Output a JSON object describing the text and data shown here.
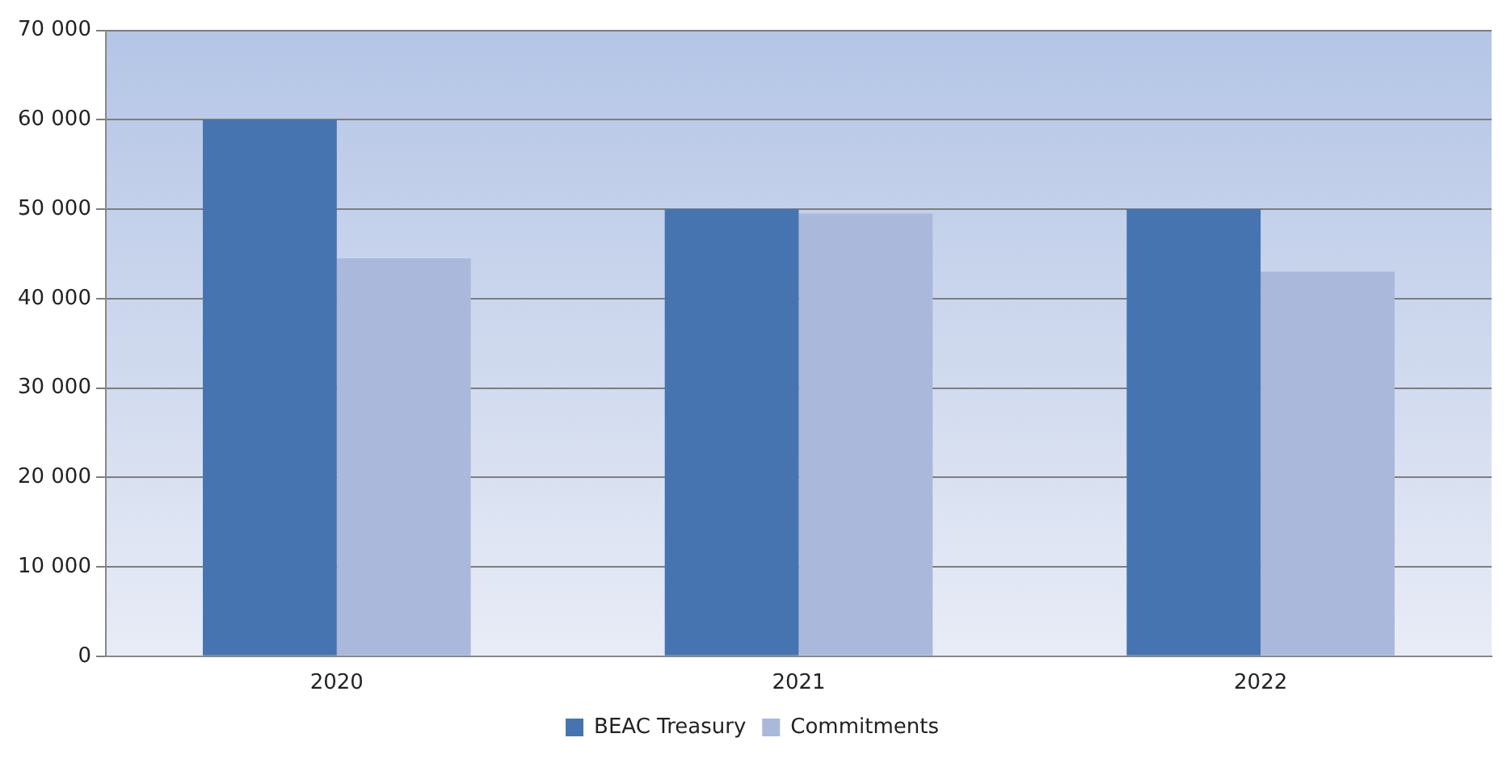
{
  "chart_data": {
    "type": "bar",
    "categories": [
      "2020",
      "2021",
      "2022"
    ],
    "series": [
      {
        "name": "BEAC Treasury",
        "color": "#4674b0",
        "values": [
          60000,
          50000,
          50000
        ]
      },
      {
        "name": "Commitments",
        "color": "#a9b8db",
        "values": [
          44500,
          49500,
          43000
        ]
      }
    ],
    "ylim": [
      0,
      70000
    ],
    "yticks": [
      {
        "value": 0,
        "label": "0"
      },
      {
        "value": 10000,
        "label": "10 000"
      },
      {
        "value": 20000,
        "label": "20 000"
      },
      {
        "value": 30000,
        "label": "30 000"
      },
      {
        "value": 40000,
        "label": "40 000"
      },
      {
        "value": 50000,
        "label": "50 000"
      },
      {
        "value": 60000,
        "label": "60 000"
      },
      {
        "value": 70000,
        "label": "70 000"
      }
    ],
    "grid": "y",
    "legend": "bottom"
  }
}
